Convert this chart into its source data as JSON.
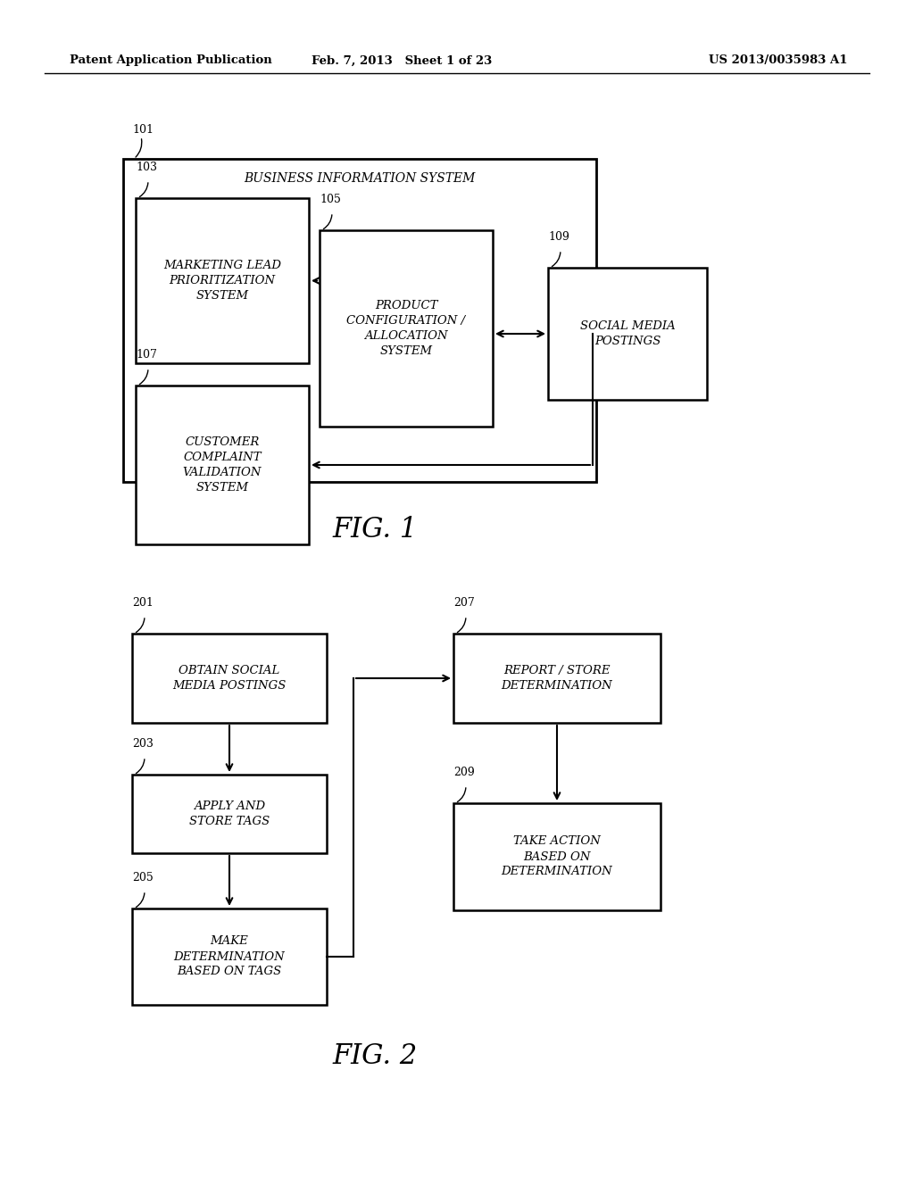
{
  "background_color": "#ffffff",
  "header_left": "Patent Application Publication",
  "header_mid": "Feb. 7, 2013   Sheet 1 of 23",
  "header_right": "US 2013/0035983 A1"
}
